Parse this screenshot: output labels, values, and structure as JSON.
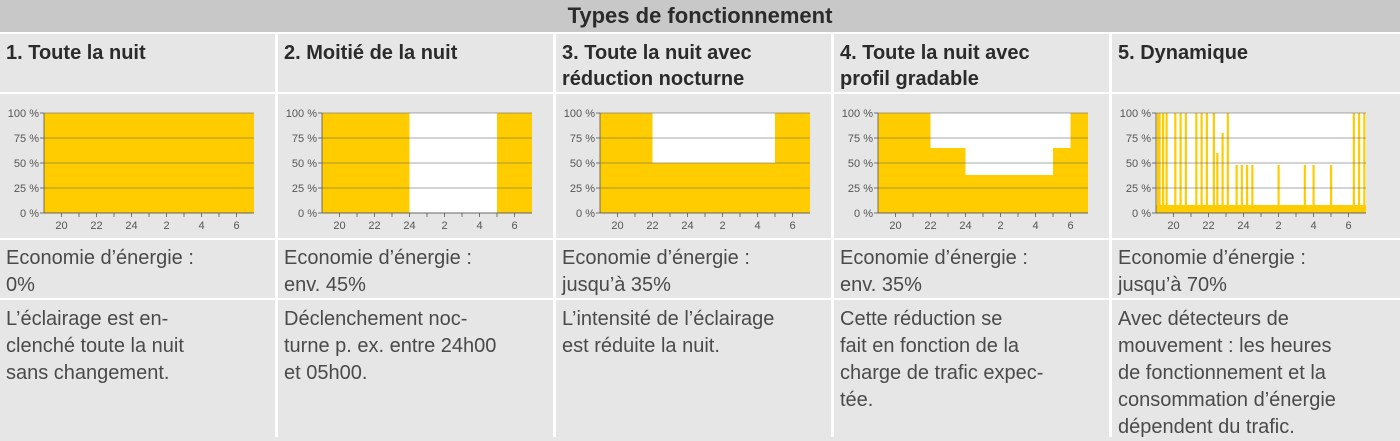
{
  "title": "Types de fonctionnement",
  "colors": {
    "fill": "#ffcc00",
    "grid": "#555555",
    "background": "#e6e6e7",
    "separator": "#ffffff"
  },
  "y_ticks": [
    "100 %",
    "75 %",
    "50 %",
    "25 %",
    "0 %"
  ],
  "x_ticks": [
    "20",
    "22",
    "24",
    "2",
    "4",
    "6"
  ],
  "columns": [
    {
      "heading": "1. Toute la nuit",
      "saving": "Economie d’énergie :\n0%",
      "description": "L’éclairage est en-\nclenché toute la nuit\nsans changement."
    },
    {
      "heading": "2. Moitié de la nuit",
      "saving": "Economie d’énergie :\nenv. 45%",
      "description": "Déclenchement noc-\nturne p. ex. entre 24h00\net 05h00."
    },
    {
      "heading": "3. Toute la nuit avec\nréduction nocturne",
      "saving": "Economie d’énergie :\njusqu’à 35%",
      "description": "L’intensité de l’éclairage\nest réduite la nuit."
    },
    {
      "heading": "4. Toute la nuit avec\nprofil gradable",
      "saving": "Economie d’énergie :\nenv. 35%",
      "description": "Cette réduction se\nfait en fonction de la\ncharge de trafic expec-\ntée."
    },
    {
      "heading": "5. Dynamique",
      "saving": "Economie d’énergie :\njusqu’à 70%",
      "description": "Avec détecteurs de\nmouvement : les heures\nde fonctionnement et la\nconsommation d’énergie\ndépendent du trafic."
    }
  ],
  "chart_data": [
    {
      "type": "area",
      "title": "1. Toute la nuit",
      "xlabel": "",
      "ylabel": "",
      "x_range": [
        19,
        31
      ],
      "ylim": [
        0,
        100
      ],
      "grid": true,
      "steps": [
        [
          19,
          100
        ],
        [
          31,
          100
        ]
      ]
    },
    {
      "type": "area",
      "title": "2. Moitié de la nuit",
      "xlabel": "",
      "ylabel": "",
      "x_range": [
        19,
        31
      ],
      "ylim": [
        0,
        100
      ],
      "grid": true,
      "steps": [
        [
          19,
          100
        ],
        [
          24,
          0
        ],
        [
          29,
          100
        ],
        [
          31,
          100
        ]
      ]
    },
    {
      "type": "area",
      "title": "3. Toute la nuit avec réduction nocturne",
      "xlabel": "",
      "ylabel": "",
      "x_range": [
        19,
        31
      ],
      "ylim": [
        0,
        100
      ],
      "grid": true,
      "steps": [
        [
          19,
          100
        ],
        [
          22,
          50
        ],
        [
          29,
          100
        ],
        [
          31,
          100
        ]
      ]
    },
    {
      "type": "area",
      "title": "4. Toute la nuit avec profil gradable",
      "xlabel": "",
      "ylabel": "",
      "x_range": [
        19,
        31
      ],
      "ylim": [
        0,
        100
      ],
      "grid": true,
      "steps": [
        [
          19,
          100
        ],
        [
          22,
          65
        ],
        [
          24,
          38
        ],
        [
          29,
          65
        ],
        [
          30,
          100
        ],
        [
          31,
          100
        ]
      ]
    },
    {
      "type": "area",
      "title": "5. Dynamique",
      "xlabel": "",
      "ylabel": "",
      "x_range": [
        19,
        31
      ],
      "ylim": [
        0,
        100
      ],
      "grid": true,
      "base_level": 8,
      "spikes_at": [
        19.1,
        19.2,
        19.4,
        19.6,
        20.1,
        20.4,
        20.7,
        21.3,
        21.6,
        21.9,
        22.3,
        22.5,
        22.8,
        23.1,
        23.6,
        23.9,
        24.2,
        24.5,
        26.0,
        27.5,
        28.0,
        29.0,
        30.3,
        30.6,
        30.9
      ],
      "spike_heights": [
        100,
        100,
        100,
        100,
        100,
        100,
        100,
        100,
        100,
        100,
        100,
        60,
        80,
        100,
        48,
        48,
        48,
        48,
        48,
        48,
        48,
        48,
        100,
        100,
        100
      ]
    }
  ]
}
